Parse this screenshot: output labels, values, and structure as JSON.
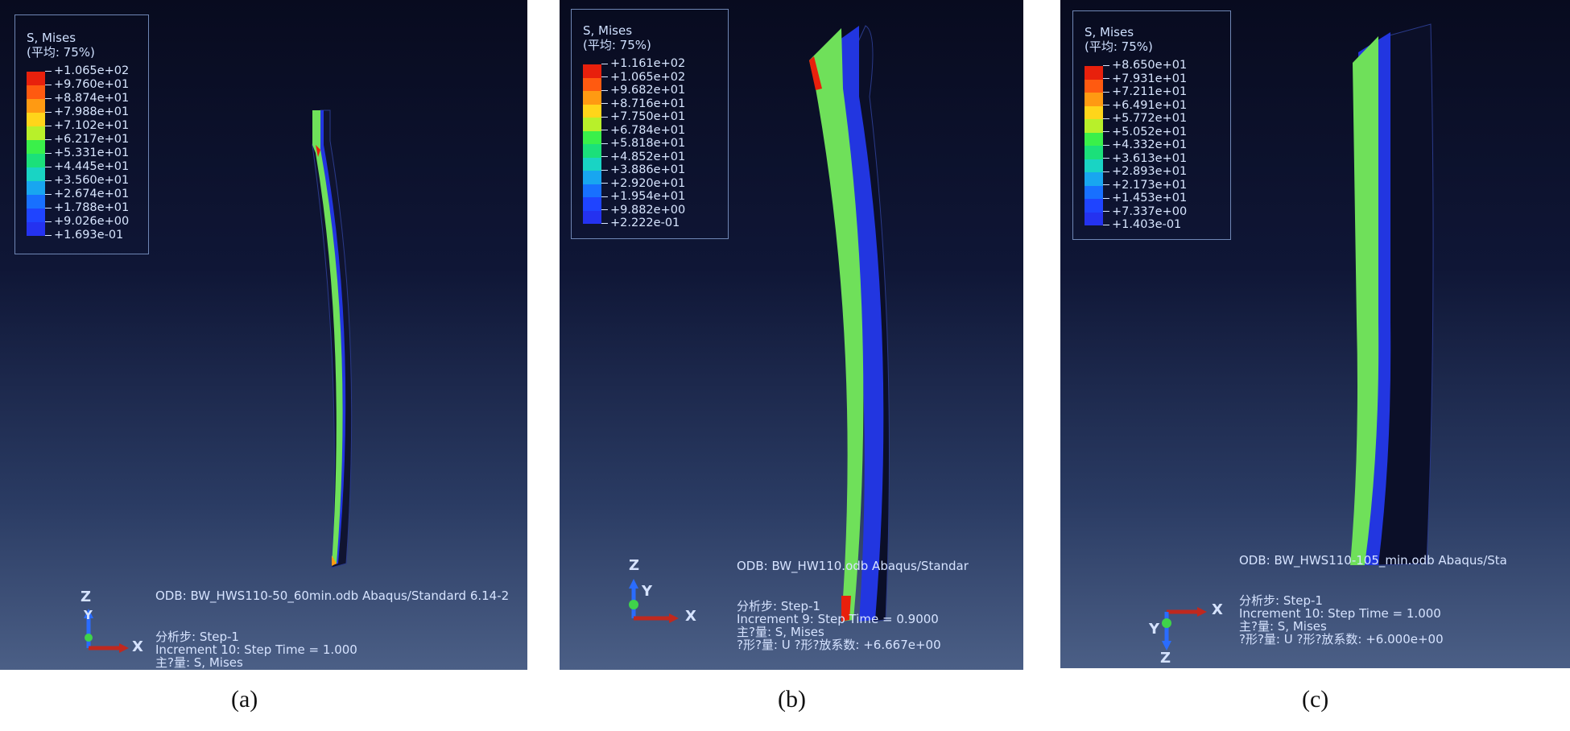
{
  "panels": [
    {
      "caption": "(a)",
      "legend": {
        "title": "S, Mises",
        "subtitle": "(平均: 75%)",
        "values": [
          "+1.065e+02",
          "+9.760e+01",
          "+8.874e+01",
          "+7.988e+01",
          "+7.102e+01",
          "+6.217e+01",
          "+5.331e+01",
          "+4.445e+01",
          "+3.560e+01",
          "+2.674e+01",
          "+1.788e+01",
          "+9.026e+00",
          "+1.693e-01"
        ]
      },
      "info": {
        "odb": "ODB: BW_HWS110-50_60min.odb    Abaqus/Standard 6.14-2",
        "lines": [
          "分析步: Step-1",
          "Increment    10: Step Time =    1.000",
          "主?量: S, Mises"
        ]
      },
      "axes": {
        "up": "Z",
        "depth": "Y",
        "right": "X"
      }
    },
    {
      "caption": "(b)",
      "legend": {
        "title": "S, Mises",
        "subtitle": "(平均: 75%)",
        "values": [
          "+1.161e+02",
          "+1.065e+02",
          "+9.682e+01",
          "+8.716e+01",
          "+7.750e+01",
          "+6.784e+01",
          "+5.818e+01",
          "+4.852e+01",
          "+3.886e+01",
          "+2.920e+01",
          "+1.954e+01",
          "+9.882e+00",
          "+2.222e-01"
        ]
      },
      "info": {
        "odb": "ODB: BW_HW110.odb    Abaqus/Standar",
        "lines": [
          "分析步: Step-1",
          "Increment     9: Step Time =    0.9000",
          "主?量: S, Mises",
          "?形?量: U   ?形?放系数: +6.667e+00"
        ]
      },
      "axes": {
        "up": "Z",
        "depth": "Y",
        "right": "X"
      }
    },
    {
      "caption": "(c)",
      "legend": {
        "title": "S, Mises",
        "subtitle": "(平均: 75%)",
        "values": [
          "+8.650e+01",
          "+7.931e+01",
          "+7.211e+01",
          "+6.491e+01",
          "+5.772e+01",
          "+5.052e+01",
          "+4.332e+01",
          "+3.613e+01",
          "+2.893e+01",
          "+2.173e+01",
          "+1.453e+01",
          "+7.337e+00",
          "+1.403e-01"
        ]
      },
      "info": {
        "odb": "ODB: BW_HWS110-105_min.odb    Abaqus/Sta",
        "lines": [
          "分析步: Step-1",
          "Increment    10: Step Time =    1.000",
          "主?量: S, Mises",
          "?形?量: U   ?形?放系数: +6.000e+00"
        ]
      },
      "axes": {
        "up": "Y",
        "down": "Z",
        "right": "X"
      }
    }
  ],
  "colors": {
    "scale": [
      "#e8200c",
      "#ff5a10",
      "#ff9a12",
      "#ffd51a",
      "#b8f02a",
      "#3af04a",
      "#1be07a",
      "#19d4c4",
      "#18a6f0",
      "#1870ff",
      "#1f44ff",
      "#2432f0"
    ],
    "mesh_green": "#6fe05a",
    "mesh_blue": "#2236e0",
    "axis_z": "#2a6cff",
    "axis_x": "#c0281e",
    "axis_y": "#3fd34a"
  }
}
